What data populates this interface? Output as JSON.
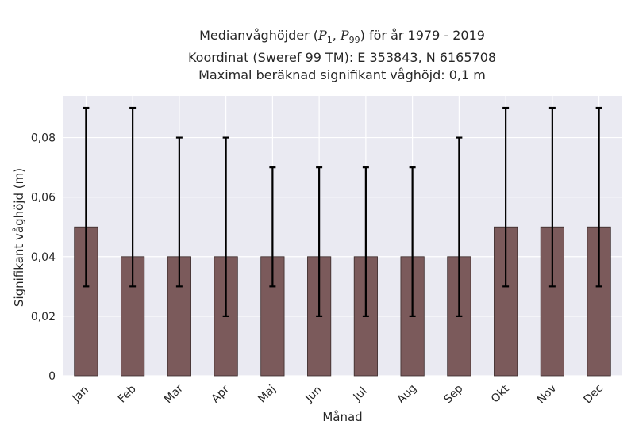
{
  "chart_data": {
    "type": "bar",
    "title_line1_pre": "Medianvåghöjder (",
    "title_p1": "P",
    "title_p1_sub": "1",
    "title_sep": ", ",
    "title_p2": "P",
    "title_p2_sub": "99",
    "title_line1_post": ") för år 1979 - 2019",
    "title_line2": "Koordinat (Sweref 99 TM): E 353843, N 6165708",
    "title_line3": "Maximal beräknad signifikant våghöjd: 0,1 m",
    "xlabel": "Månad",
    "ylabel": "Signifikant våghöjd (m)",
    "categories": [
      "Jan",
      "Feb",
      "Mar",
      "Apr",
      "Maj",
      "Jun",
      "Jul",
      "Aug",
      "Sep",
      "Okt",
      "Nov",
      "Dec"
    ],
    "values": [
      0.05,
      0.04,
      0.04,
      0.04,
      0.04,
      0.04,
      0.04,
      0.04,
      0.04,
      0.05,
      0.05,
      0.05
    ],
    "p1": [
      0.03,
      0.03,
      0.03,
      0.02,
      0.03,
      0.02,
      0.02,
      0.02,
      0.02,
      0.03,
      0.03,
      0.03
    ],
    "p99": [
      0.09,
      0.09,
      0.08,
      0.08,
      0.07,
      0.07,
      0.07,
      0.07,
      0.08,
      0.09,
      0.09,
      0.09
    ],
    "yticks": [
      0,
      0.02,
      0.04,
      0.06,
      0.08
    ],
    "ytick_labels": [
      "0",
      "0,02",
      "0,04",
      "0,06",
      "0,08"
    ],
    "ylim": [
      0,
      0.094
    ],
    "grid": true,
    "colors": {
      "bar": "#7b5a5b",
      "bar_edge": "#3a2a2b",
      "plot_bg": "#eaeaf2",
      "grid": "#ffffff",
      "error": "#000000"
    }
  }
}
